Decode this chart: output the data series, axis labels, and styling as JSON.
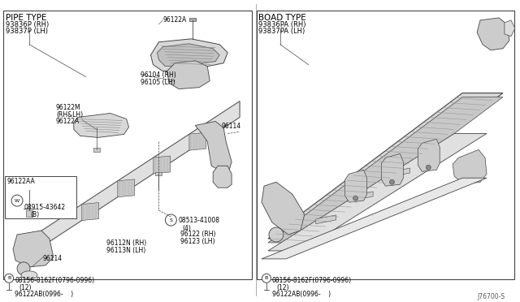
{
  "bg_color": "#ffffff",
  "fig_width": 6.4,
  "fig_height": 3.72,
  "dpi": 100,
  "diagram_ref": "J76700-S",
  "left_panel": {
    "border": [
      3,
      5,
      308,
      340
    ],
    "title": "PIPE TYPE",
    "sub1": "93836P (RH)",
    "sub2": "93837P (LH)",
    "parts_label_96122A_top": "96122A",
    "parts_label_96104": "96104 (RH)",
    "parts_label_96105": "96105 (LH)",
    "parts_label_96122M": "96122M",
    "parts_label_RH_LH": "(RH&LH)",
    "parts_label_96122A2": "96122A",
    "parts_label_96122AA": "96122AA",
    "parts_label_W": "W",
    "parts_label_08915": "08915-43642",
    "parts_label_B1": "(B)",
    "parts_label_96114_mid": "96114",
    "parts_label_S": "S",
    "parts_label_08513": "08513-41008",
    "parts_label_4": "(4)",
    "parts_label_96122rh": "96122 (RH)",
    "parts_label_96123lh": "96123 (LH)",
    "parts_label_96112N": "96112N (RH)",
    "parts_label_96113N": "96113N (LH)",
    "parts_label_96114_bot": "96114",
    "parts_label_B_bolt": "B 08156-8162F(0796-0996)",
    "parts_label_12": "(12)",
    "parts_label_96122AB": "96122AB(0996-    )"
  },
  "right_panel": {
    "border": [
      316,
      5,
      318,
      340
    ],
    "title": "BOAD TYPE",
    "sub1": "93836PA (RH)",
    "sub2": "93837PA (LH)",
    "parts_label_B_bolt": "B 08156-8162F(0796-0996)",
    "parts_label_12": "(12)",
    "parts_label_96122AB": "96122AB(0996-    )"
  },
  "line_color": "#444444",
  "fill_light": "#e8e8e8",
  "fill_mid": "#d0d0d0",
  "hatch_color": "#999999",
  "text_fs": 5.5,
  "label_fs": 6.0
}
